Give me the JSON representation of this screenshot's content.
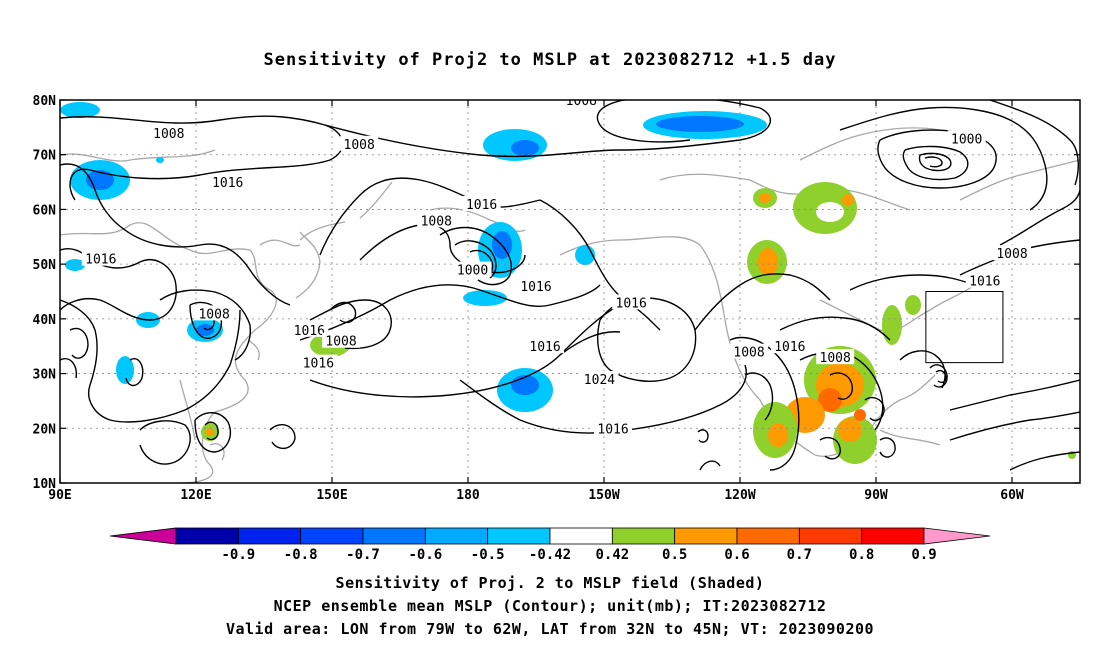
{
  "title": "Sensitivity of Proj2 to MSLP at 2023082712 +1.5 day",
  "captions": {
    "line1": "Sensitivity of Proj. 2 to MSLP field (Shaded)",
    "line2": "NCEP ensemble mean MSLP (Contour); unit(mb); IT:2023082712",
    "line3": "Valid area: LON from 79W to 62W, LAT from 32N to 45N; VT: 2023090200"
  },
  "chart_data": {
    "type": "heatmap",
    "map_projection": "cylindrical",
    "x_ticks": [
      {
        "lon": 90,
        "label": "90E"
      },
      {
        "lon": 120,
        "label": "120E"
      },
      {
        "lon": 150,
        "label": "150E"
      },
      {
        "lon": 180,
        "label": "180"
      },
      {
        "lon": 210,
        "label": "150W"
      },
      {
        "lon": 240,
        "label": "120W"
      },
      {
        "lon": 270,
        "label": "90W"
      },
      {
        "lon": 300,
        "label": "60W"
      }
    ],
    "y_ticks": [
      {
        "lat": 10,
        "label": "10N"
      },
      {
        "lat": 20,
        "label": "20N"
      },
      {
        "lat": 30,
        "label": "30N"
      },
      {
        "lat": 40,
        "label": "40N"
      },
      {
        "lat": 50,
        "label": "50N"
      },
      {
        "lat": 60,
        "label": "60N"
      },
      {
        "lat": 70,
        "label": "70N"
      },
      {
        "lat": 80,
        "label": "80N"
      }
    ],
    "lon_range": [
      90,
      315
    ],
    "lat_range": [
      10,
      80
    ],
    "grid": "dotted",
    "colorbar": {
      "labels": [
        "-0.9",
        "-0.8",
        "-0.7",
        "-0.6",
        "-0.5",
        "-0.42",
        "0.42",
        "0.5",
        "0.6",
        "0.7",
        "0.8",
        "0.9"
      ],
      "colors": [
        "#cc0099",
        "#0000aa",
        "#0022ee",
        "#0044ff",
        "#0077ff",
        "#00aaff",
        "#00c8ff",
        "#ffffff",
        "#8fd02d",
        "#ff9a00",
        "#ff6a00",
        "#ff3a00",
        "#ff0000",
        "#ff99cc"
      ]
    },
    "valid_area": {
      "lon": [
        281,
        298
      ],
      "lat": [
        32,
        45
      ]
    },
    "contour_labels": [
      {
        "lon": 114,
        "lat": 74,
        "text": "1008"
      },
      {
        "lon": 156,
        "lat": 72,
        "text": "1008"
      },
      {
        "lon": 127,
        "lat": 65,
        "text": "1016"
      },
      {
        "lon": 99,
        "lat": 51,
        "text": "1016"
      },
      {
        "lon": 124,
        "lat": 41,
        "text": "1008"
      },
      {
        "lon": 145,
        "lat": 38,
        "text": "1016"
      },
      {
        "lon": 152,
        "lat": 36,
        "text": "1008"
      },
      {
        "lon": 147,
        "lat": 32,
        "text": "1016"
      },
      {
        "lon": 173,
        "lat": 58,
        "text": "1008"
      },
      {
        "lon": 183,
        "lat": 61,
        "text": "1016"
      },
      {
        "lon": 181,
        "lat": 49,
        "text": "1000"
      },
      {
        "lon": 195,
        "lat": 46,
        "text": "1016"
      },
      {
        "lon": 197,
        "lat": 35,
        "text": "1016"
      },
      {
        "lon": 216,
        "lat": 43,
        "text": "1016"
      },
      {
        "lon": 205,
        "lat": 80,
        "text": "1008"
      },
      {
        "lon": 290,
        "lat": 73,
        "text": "1000"
      },
      {
        "lon": 300,
        "lat": 52,
        "text": "1008"
      },
      {
        "lon": 294,
        "lat": 47,
        "text": "1016"
      },
      {
        "lon": 209,
        "lat": 29,
        "text": "1024"
      },
      {
        "lon": 242,
        "lat": 34,
        "text": "1008"
      },
      {
        "lon": 251,
        "lat": 35,
        "text": "1016"
      },
      {
        "lon": 261,
        "lat": 33,
        "text": "1008"
      },
      {
        "lon": 212,
        "lat": 20,
        "text": "1016"
      }
    ]
  }
}
